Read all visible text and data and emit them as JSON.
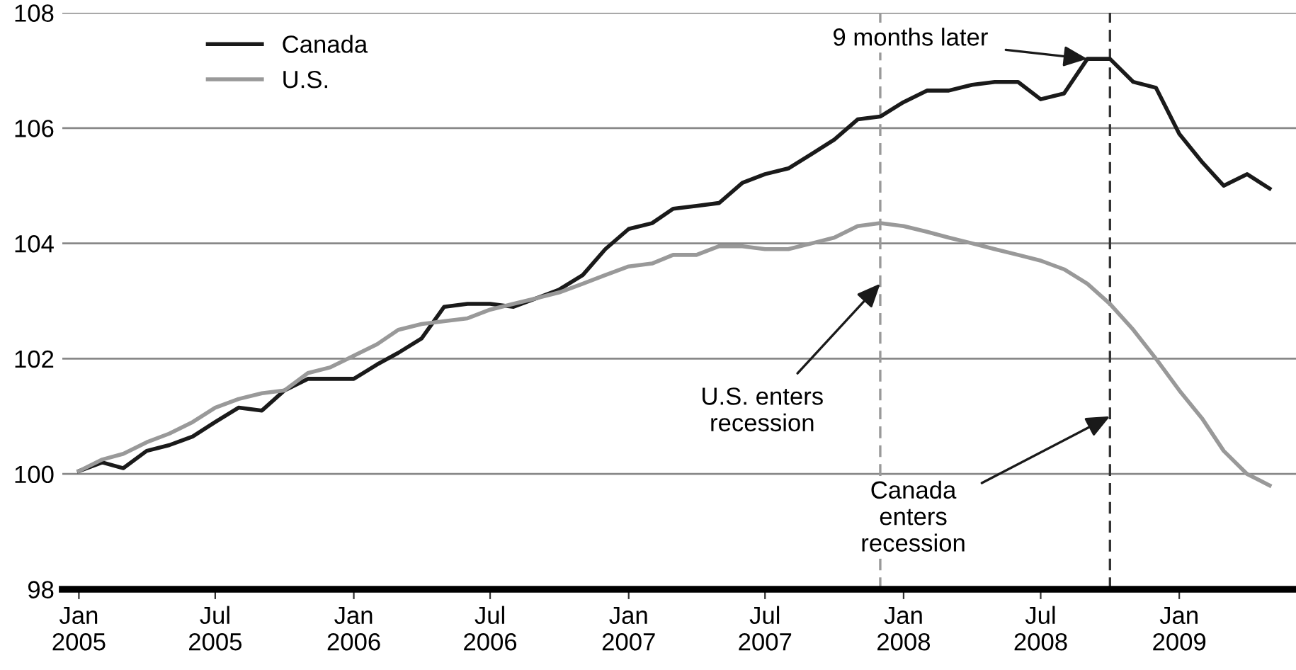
{
  "chart_data": {
    "type": "line",
    "x": [
      "2005-01",
      "2005-02",
      "2005-03",
      "2005-04",
      "2005-05",
      "2005-06",
      "2005-07",
      "2005-08",
      "2005-09",
      "2005-10",
      "2005-11",
      "2005-12",
      "2006-01",
      "2006-02",
      "2006-03",
      "2006-04",
      "2006-05",
      "2006-06",
      "2006-07",
      "2006-08",
      "2006-09",
      "2006-10",
      "2006-11",
      "2006-12",
      "2007-01",
      "2007-02",
      "2007-03",
      "2007-04",
      "2007-05",
      "2007-06",
      "2007-07",
      "2007-08",
      "2007-09",
      "2007-10",
      "2007-11",
      "2007-12",
      "2008-01",
      "2008-02",
      "2008-03",
      "2008-04",
      "2008-05",
      "2008-06",
      "2008-07",
      "2008-08",
      "2008-09",
      "2008-10",
      "2008-11",
      "2008-12",
      "2009-01",
      "2009-02",
      "2009-03",
      "2009-04",
      "2009-05"
    ],
    "series": [
      {
        "name": "Canada",
        "color": "#1a1a1a",
        "values": [
          100.05,
          100.2,
          100.1,
          100.4,
          100.5,
          100.65,
          100.9,
          101.15,
          101.1,
          101.45,
          101.65,
          101.65,
          101.65,
          101.9,
          102.1,
          102.35,
          102.9,
          102.95,
          102.95,
          102.9,
          103.05,
          103.2,
          103.45,
          103.9,
          104.25,
          104.35,
          104.6,
          104.65,
          104.7,
          105.05,
          105.2,
          105.3,
          105.55,
          105.8,
          106.15,
          106.2,
          106.45,
          106.65,
          106.65,
          106.75,
          106.8,
          106.8,
          106.5,
          106.6,
          107.2,
          107.2,
          106.8,
          106.7,
          105.9,
          105.4,
          105.0,
          105.2,
          104.95
        ]
      },
      {
        "name": "U.S.",
        "color": "#999999",
        "values": [
          100.05,
          100.25,
          100.35,
          100.55,
          100.7,
          100.9,
          101.15,
          101.3,
          101.4,
          101.45,
          101.75,
          101.85,
          102.05,
          102.25,
          102.5,
          102.6,
          102.65,
          102.7,
          102.85,
          102.95,
          103.05,
          103.15,
          103.3,
          103.45,
          103.6,
          103.65,
          103.8,
          103.8,
          103.95,
          103.95,
          103.9,
          103.9,
          104.0,
          104.1,
          104.3,
          104.35,
          104.3,
          104.2,
          104.1,
          104.0,
          103.9,
          103.8,
          103.7,
          103.55,
          103.3,
          102.95,
          102.5,
          102.0,
          101.45,
          100.95,
          100.4,
          100.0,
          99.8
        ]
      }
    ],
    "xlim": [
      "2004-12-10",
      "2009-06-05"
    ],
    "xticks": [
      {
        "value": "2005-01",
        "label": "Jan\n2005"
      },
      {
        "value": "2005-07",
        "label": "Jul\n2005"
      },
      {
        "value": "2006-01",
        "label": "Jan\n2006"
      },
      {
        "value": "2006-07",
        "label": "Jul\n2006"
      },
      {
        "value": "2007-01",
        "label": "Jan\n2007"
      },
      {
        "value": "2007-07",
        "label": "Jul\n2007"
      },
      {
        "value": "2008-01",
        "label": "Jan\n2008"
      },
      {
        "value": "2008-07",
        "label": "Jul\n2008"
      },
      {
        "value": "2009-01",
        "label": "Jan\n2009"
      }
    ],
    "ylim": [
      98,
      108
    ],
    "yticks": [
      98,
      100,
      102,
      104,
      106,
      108
    ],
    "grid": "y",
    "legend": "top left",
    "line_style": "solid",
    "marker": "none",
    "ref_lines": [
      {
        "axis": "x",
        "value": "2007-12",
        "color": "#999999",
        "line_style": "dashed"
      },
      {
        "axis": "x",
        "value": "2008-10",
        "color": "#333333",
        "line_style": "dashed"
      }
    ],
    "annotations": [
      {
        "text": "9 months later",
        "x": "2008-09",
        "y": 107.2
      },
      {
        "text": "U.S. enters\nrecession",
        "x": "2007-12",
        "y": 103.3
      },
      {
        "text": "Canada\nenters\nrecession",
        "x": "2008-10",
        "y": 101.0
      }
    ]
  }
}
